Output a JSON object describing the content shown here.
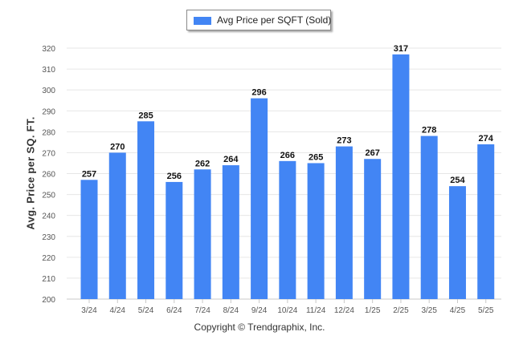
{
  "colors": {
    "bar": "#4285f4",
    "grid": "#e6e6e6",
    "axis_text": "#555555",
    "label_text": "#111111"
  },
  "legend": {
    "label": "Avg Price per SQFT (Sold)"
  },
  "footer": {
    "copyright": "Copyright © Trendgraphix, Inc."
  },
  "chart_data": {
    "type": "bar",
    "categories": [
      "3/24",
      "4/24",
      "5/24",
      "6/24",
      "7/24",
      "8/24",
      "9/24",
      "10/24",
      "11/24",
      "12/24",
      "1/25",
      "2/25",
      "3/25",
      "4/25",
      "5/25"
    ],
    "series": [
      {
        "name": "Avg Price per SQFT (Sold)",
        "values": [
          257,
          270,
          285,
          256,
          262,
          264,
          296,
          266,
          265,
          273,
          267,
          317,
          278,
          254,
          274
        ]
      }
    ],
    "ylabel": "Avg. Price per SQ. FT.",
    "xlabel": "",
    "ylim": [
      200,
      320
    ],
    "yticks": [
      200,
      210,
      220,
      230,
      240,
      250,
      260,
      270,
      280,
      290,
      300,
      310,
      320
    ],
    "grid": true,
    "legend_position": "top-center"
  }
}
